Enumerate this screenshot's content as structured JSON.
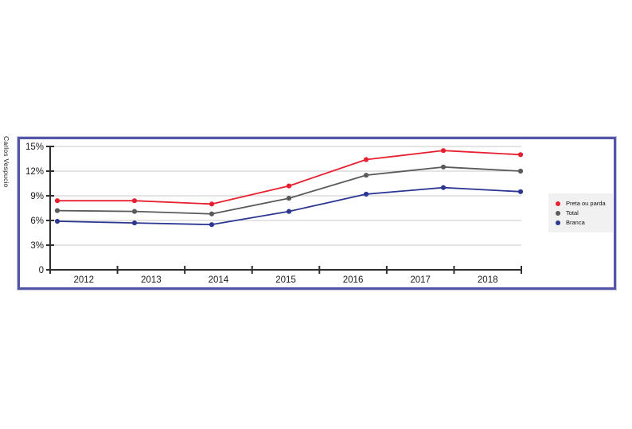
{
  "attribution": "Carlos Vespucio",
  "colors": {
    "panel_border": "#5355a5",
    "panel_border_outer": "#c5c6e0",
    "grid": "#c9c9c9",
    "axis": "#2e2e2e",
    "tick_label": "#1a1a1a",
    "legend_bg": "#f1f1f1",
    "legend_text": "#111111"
  },
  "chart_data": {
    "type": "line",
    "title": "",
    "xlabel": "",
    "ylabel": "",
    "x_labels": [
      "2012",
      "2013",
      "2014",
      "2015",
      "2016",
      "2017",
      "2018"
    ],
    "ylim": [
      0,
      15
    ],
    "grid": true,
    "legend_position": "right",
    "y_ticks": [
      {
        "value": 15,
        "label": "15%"
      },
      {
        "value": 12,
        "label": "12%"
      },
      {
        "value": 9,
        "label": "9%"
      },
      {
        "value": 6,
        "label": "6%"
      },
      {
        "value": 3,
        "label": "3%"
      },
      {
        "value": 0,
        "label": "0"
      }
    ],
    "series": [
      {
        "name": "Preta ou parda",
        "color": "#e62030",
        "values": [
          8.4,
          8.4,
          8.0,
          10.2,
          13.4,
          14.5,
          14.0
        ]
      },
      {
        "name": "Total",
        "color": "#5a5a5a",
        "values": [
          7.2,
          7.1,
          6.8,
          8.7,
          11.5,
          12.5,
          12.0
        ]
      },
      {
        "name": "Branca",
        "color": "#2c3792",
        "values": [
          5.9,
          5.7,
          5.5,
          7.1,
          9.2,
          10.0,
          9.5
        ]
      }
    ]
  }
}
